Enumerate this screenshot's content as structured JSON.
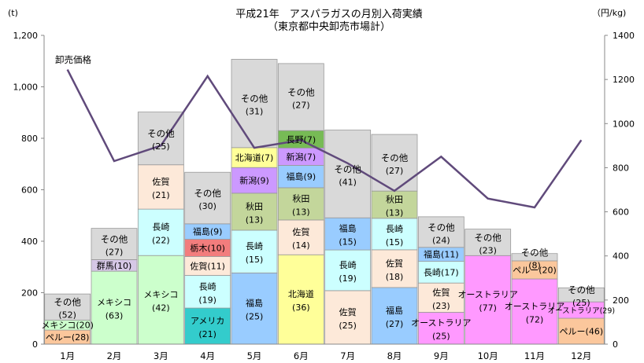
{
  "chart_data": {
    "type": "bar",
    "title": "平成21年　アスパラガスの月別入荷実績",
    "subtitle": "（東京都中央卸売市場計）",
    "y_unit_left": "(t)",
    "y_unit_right": "（円/kg)",
    "ylim": [
      0,
      1200
    ],
    "y2lim": [
      0,
      1400
    ],
    "yticks": [
      "0",
      "200",
      "400",
      "600",
      "800",
      "1,000",
      "1,200"
    ],
    "y2ticks": [
      "0",
      "200",
      "400",
      "600",
      "800",
      "1000",
      "1200",
      "1400"
    ],
    "categories": [
      "1月",
      "2月",
      "3月",
      "4月",
      "5月",
      "6月",
      "7月",
      "8月",
      "9月",
      "10月",
      "11月",
      "12月"
    ],
    "stacks": [
      [
        {
          "name": "ペルー",
          "value": 28,
          "color": "#FBC79C"
        },
        {
          "name": "メキシコ",
          "value": 20,
          "color": "#CCFFCC"
        },
        {
          "name": "その他",
          "value": 52,
          "color": "#D9D9D9"
        }
      ],
      [
        {
          "name": "メキシコ",
          "value": 63,
          "color": "#CCFFCC"
        },
        {
          "name": "群馬",
          "value": 10,
          "color": "#D6C8E6"
        },
        {
          "name": "その他",
          "value": 27,
          "color": "#D9D9D9"
        }
      ],
      [
        {
          "name": "メキシコ",
          "value": 42,
          "color": "#CCFFCC"
        },
        {
          "name": "長崎",
          "value": 22,
          "color": "#CCFFFF"
        },
        {
          "name": "佐賀",
          "value": 21,
          "color": "#FDE9D9"
        },
        {
          "name": "その他",
          "value": 25,
          "color": "#D9D9D9"
        }
      ],
      [
        {
          "name": "アメリカ",
          "value": 21,
          "color": "#33CCCC"
        },
        {
          "name": "長崎",
          "value": 19,
          "color": "#CCFFFF"
        },
        {
          "name": "佐賀",
          "value": 11,
          "color": "#FDE9D9"
        },
        {
          "name": "栃木",
          "value": 10,
          "color": "#F27D7D"
        },
        {
          "name": "福島",
          "value": 9,
          "color": "#99CCFF"
        },
        {
          "name": "その他",
          "value": 30,
          "color": "#D9D9D9"
        }
      ],
      [
        {
          "name": "福島",
          "value": 25,
          "color": "#99CCFF"
        },
        {
          "name": "長崎",
          "value": 15,
          "color": "#CCFFFF"
        },
        {
          "name": "秋田",
          "value": 13,
          "color": "#C3D69B"
        },
        {
          "name": "新潟",
          "value": 9,
          "color": "#CC99FF"
        },
        {
          "name": "北海道",
          "value": 7,
          "color": "#FFFF99"
        },
        {
          "name": "その他",
          "value": 31,
          "color": "#D9D9D9"
        }
      ],
      [
        {
          "name": "北海道",
          "value": 36,
          "color": "#FFFF99"
        },
        {
          "name": "佐賀",
          "value": 14,
          "color": "#FDE9D9"
        },
        {
          "name": "秋田",
          "value": 13,
          "color": "#C3D69B"
        },
        {
          "name": "福島",
          "value": 9,
          "color": "#99CCFF"
        },
        {
          "name": "新潟",
          "value": 7,
          "color": "#CC99FF"
        },
        {
          "name": "長野",
          "value": 7,
          "color": "#77BB55"
        },
        {
          "name": "その他",
          "value": 27,
          "color": "#D9D9D9"
        }
      ],
      [
        {
          "name": "佐賀",
          "value": 25,
          "color": "#FDE9D9"
        },
        {
          "name": "長崎",
          "value": 19,
          "color": "#CCFFFF"
        },
        {
          "name": "福島",
          "value": 15,
          "color": "#99CCFF"
        },
        {
          "name": "その他",
          "value": 41,
          "color": "#D9D9D9"
        }
      ],
      [
        {
          "name": "福島",
          "value": 27,
          "color": "#99CCFF"
        },
        {
          "name": "佐賀",
          "value": 18,
          "color": "#FDE9D9"
        },
        {
          "name": "長崎",
          "value": 15,
          "color": "#CCFFFF"
        },
        {
          "name": "秋田",
          "value": 13,
          "color": "#C3D69B"
        },
        {
          "name": "その他",
          "value": 27,
          "color": "#D9D9D9"
        }
      ],
      [
        {
          "name": "オーストラリア",
          "value": 25,
          "color": "#FF99FF"
        },
        {
          "name": "佐賀",
          "value": 23,
          "color": "#FDE9D9"
        },
        {
          "name": "長崎",
          "value": 17,
          "color": "#CCFFFF"
        },
        {
          "name": "福島",
          "value": 11,
          "color": "#99CCFF"
        },
        {
          "name": "その他",
          "value": 24,
          "color": "#D9D9D9"
        }
      ],
      [
        {
          "name": "オーストラリア",
          "value": 77,
          "color": "#FF99FF"
        },
        {
          "name": "その他",
          "value": 23,
          "color": "#D9D9D9"
        }
      ],
      [
        {
          "name": "オーストラリア",
          "value": 72,
          "color": "#FF99FF"
        },
        {
          "name": "ペルー",
          "value": 20,
          "color": "#FBC79C"
        },
        {
          "name": "その他",
          "value": 8,
          "color": "#D9D9D9"
        }
      ],
      [
        {
          "name": "ペルー",
          "value": 46,
          "color": "#FBC79C"
        },
        {
          "name": "オーストラリア",
          "value": 29,
          "color": "#FF99FF"
        },
        {
          "name": "その他",
          "value": 25,
          "color": "#D9D9D9"
        }
      ]
    ],
    "totals": [
      195,
      450,
      820,
      668,
      1107,
      965,
      832,
      815,
      495,
      447,
      352,
      219
    ],
    "price_line": {
      "name": "卸売価格",
      "color": "#604A7B",
      "values": [
        1245,
        830,
        900,
        1215,
        890,
        925,
        820,
        695,
        850,
        660,
        620,
        925
      ]
    }
  }
}
